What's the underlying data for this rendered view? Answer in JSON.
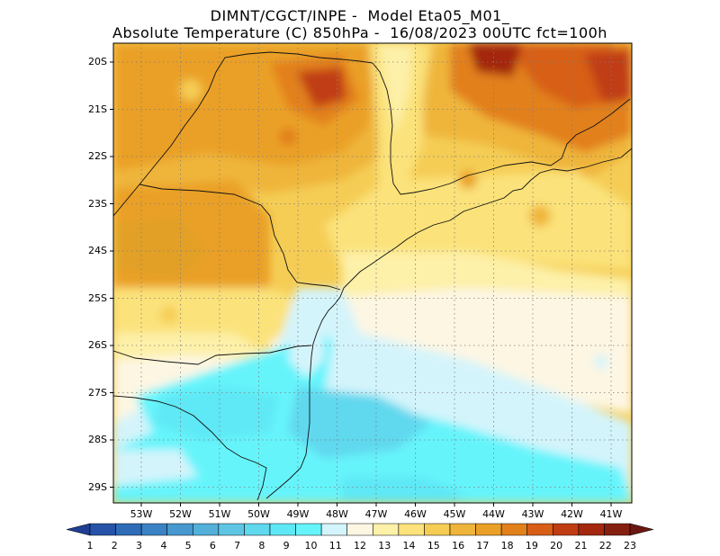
{
  "header": {
    "line1": "DIMNT/CGCT/INPE -  Model Eta05_M01_",
    "line2": "Absolute Temperature (C) 850hPa -  16/08/2023 00UTC fct=100h"
  },
  "map": {
    "lat_labels": [
      "20S",
      "21S",
      "22S",
      "23S",
      "24S",
      "25S",
      "26S",
      "27S",
      "28S",
      "29S"
    ],
    "lon_labels": [
      "53W",
      "52W",
      "51W",
      "50W",
      "49W",
      "48W",
      "47W",
      "46W",
      "45W",
      "44W",
      "43W",
      "42W",
      "41W"
    ]
  },
  "colorbar": {
    "labels": [
      "1",
      "2",
      "3",
      "4",
      "5",
      "6",
      "7",
      "8",
      "9",
      "10",
      "11",
      "12",
      "13",
      "14",
      "15",
      "16",
      "17",
      "18",
      "19",
      "20",
      "21",
      "22",
      "23"
    ],
    "colors": [
      "#1f3e94",
      "#2652a8",
      "#2e6cb8",
      "#3a82c4",
      "#4698cf",
      "#52b0d9",
      "#5ec6e4",
      "#60d8ee",
      "#5ee8f5",
      "#66f4fb",
      "#d4f4fb",
      "#fdf6e3",
      "#fdf0a8",
      "#fbe27a",
      "#f5cd55",
      "#efb53a",
      "#eaa026",
      "#e2801c",
      "#d75e17",
      "#c03c12",
      "#a3280f",
      "#852010",
      "#6b1810"
    ]
  }
}
